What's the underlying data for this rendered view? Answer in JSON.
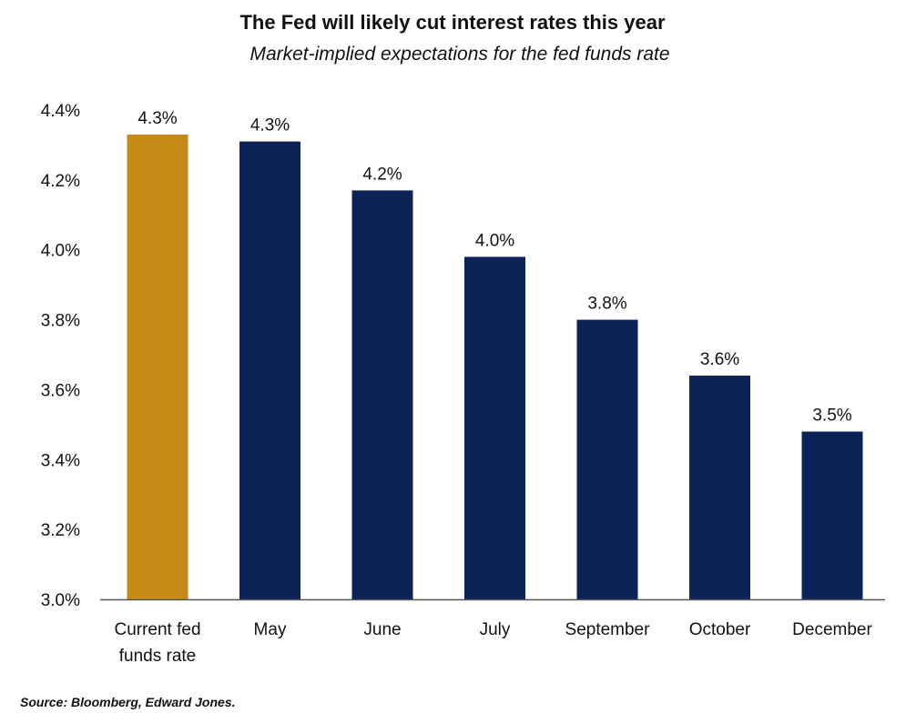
{
  "chart_data": {
    "type": "bar",
    "title": "The Fed will likely cut interest rates this year",
    "subtitle": "Market-implied expectations for the fed funds rate",
    "xlabel": "",
    "ylabel": "",
    "categories": [
      [
        "Current fed",
        "funds rate"
      ],
      [
        "May"
      ],
      [
        "June"
      ],
      [
        "July"
      ],
      [
        "September"
      ],
      [
        "October"
      ],
      [
        "December"
      ]
    ],
    "values": [
      4.33,
      4.31,
      4.17,
      3.98,
      3.8,
      3.64,
      3.48
    ],
    "value_labels": [
      "4.3%",
      "4.3%",
      "4.2%",
      "4.0%",
      "3.8%",
      "3.6%",
      "3.5%"
    ],
    "ylim": [
      3.0,
      4.4
    ],
    "yticks": [
      3.0,
      3.2,
      3.4,
      3.6,
      3.8,
      4.0,
      4.2,
      4.4
    ],
    "ytick_labels": [
      "3.0%",
      "3.2%",
      "3.4%",
      "3.6%",
      "3.8%",
      "4.0%",
      "4.2%",
      "4.4%"
    ],
    "bar_colors": [
      "#C68A17",
      "#0B2356",
      "#0B2356",
      "#0B2356",
      "#0B2356",
      "#0B2356",
      "#0B2356"
    ],
    "axis_color": "#555555",
    "grid": false,
    "legend": "none"
  },
  "source": "Source: Bloomberg, Edward Jones."
}
